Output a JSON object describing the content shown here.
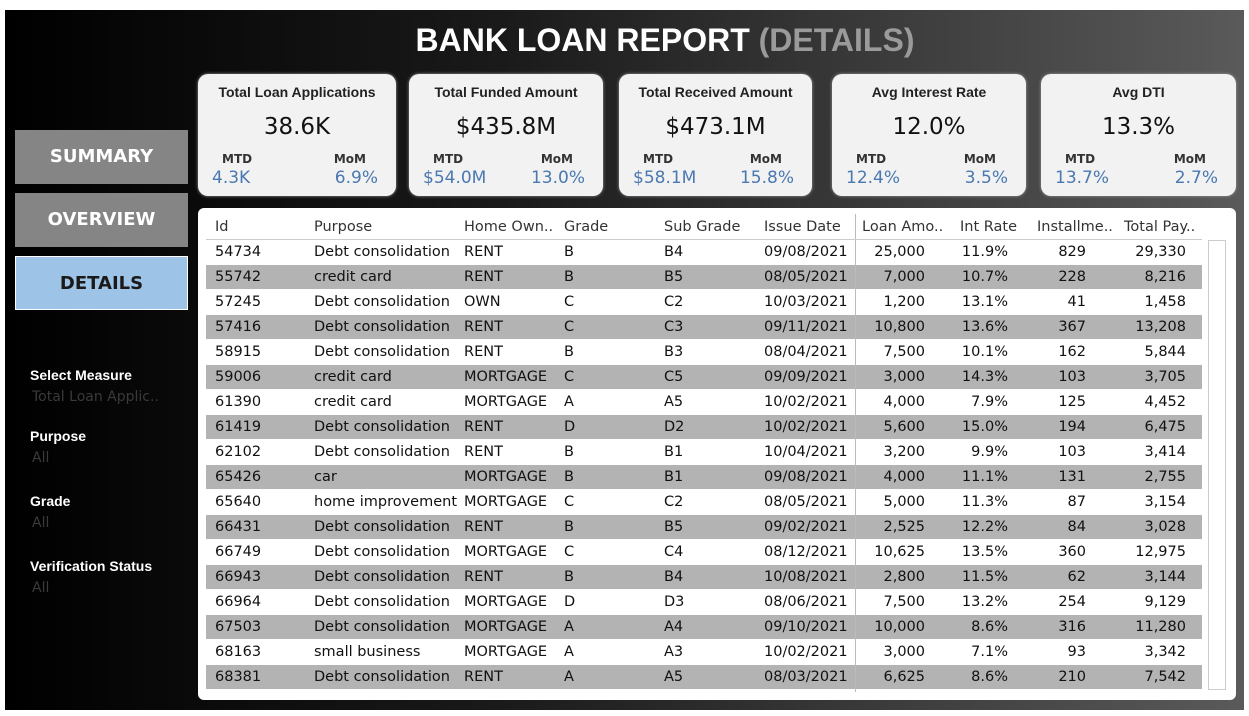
{
  "header": {
    "title": "BANK LOAN REPORT",
    "subtitle": "(DETAILS)"
  },
  "nav": [
    "SUMMARY",
    "OVERVIEW",
    "DETAILS"
  ],
  "filters": [
    {
      "label": "Select Measure",
      "value": "Total Loan Applic.."
    },
    {
      "label": "Purpose",
      "value": "All"
    },
    {
      "label": "Grade",
      "value": "All"
    },
    {
      "label": "Verification Status",
      "value": "All"
    }
  ],
  "kpis": [
    {
      "title": "Total Loan Applications",
      "value": "38.6K",
      "mtd_label": "MTD",
      "mtd": "4.3K",
      "mom_label": "MoM",
      "mom": "6.9%"
    },
    {
      "title": "Total Funded Amount",
      "value": "$435.8M",
      "mtd_label": "MTD",
      "mtd": "$54.0M",
      "mom_label": "MoM",
      "mom": "13.0%"
    },
    {
      "title": "Total Received Amount",
      "value": "$473.1M",
      "mtd_label": "MTD",
      "mtd": "$58.1M",
      "mom_label": "MoM",
      "mom": "15.8%"
    },
    {
      "title": "Avg Interest Rate",
      "value": "12.0%",
      "mtd_label": "MTD",
      "mtd": "12.4%",
      "mom_label": "MoM",
      "mom": "3.5%"
    },
    {
      "title": "Avg DTI",
      "value": "13.3%",
      "mtd_label": "MTD",
      "mtd": "13.7%",
      "mom_label": "MoM",
      "mom": "2.7%"
    }
  ],
  "table": {
    "columns": [
      "Id",
      "Purpose",
      "Home Own..",
      "Grade",
      "Sub Grade",
      "Issue Date",
      "Loan Amo..",
      "Int Rate",
      "Installme..",
      "Total Pay.."
    ],
    "rows": [
      [
        "54734",
        "Debt consolidation",
        "RENT",
        "B",
        "B4",
        "09/08/2021",
        "25,000",
        "11.9%",
        "829",
        "29,330"
      ],
      [
        "55742",
        "credit card",
        "RENT",
        "B",
        "B5",
        "08/05/2021",
        "7,000",
        "10.7%",
        "228",
        "8,216"
      ],
      [
        "57245",
        "Debt consolidation",
        "OWN",
        "C",
        "C2",
        "10/03/2021",
        "1,200",
        "13.1%",
        "41",
        "1,458"
      ],
      [
        "57416",
        "Debt consolidation",
        "RENT",
        "C",
        "C3",
        "09/11/2021",
        "10,800",
        "13.6%",
        "367",
        "13,208"
      ],
      [
        "58915",
        "Debt consolidation",
        "RENT",
        "B",
        "B3",
        "08/04/2021",
        "7,500",
        "10.1%",
        "162",
        "5,844"
      ],
      [
        "59006",
        "credit card",
        "MORTGAGE",
        "C",
        "C5",
        "09/09/2021",
        "3,000",
        "14.3%",
        "103",
        "3,705"
      ],
      [
        "61390",
        "credit card",
        "MORTGAGE",
        "A",
        "A5",
        "10/02/2021",
        "4,000",
        "7.9%",
        "125",
        "4,452"
      ],
      [
        "61419",
        "Debt consolidation",
        "RENT",
        "D",
        "D2",
        "10/02/2021",
        "5,600",
        "15.0%",
        "194",
        "6,475"
      ],
      [
        "62102",
        "Debt consolidation",
        "RENT",
        "B",
        "B1",
        "10/04/2021",
        "3,200",
        "9.9%",
        "103",
        "3,414"
      ],
      [
        "65426",
        "car",
        "MORTGAGE",
        "B",
        "B1",
        "09/08/2021",
        "4,000",
        "11.1%",
        "131",
        "2,755"
      ],
      [
        "65640",
        "home improvement",
        "MORTGAGE",
        "C",
        "C2",
        "08/05/2021",
        "5,000",
        "11.3%",
        "87",
        "3,154"
      ],
      [
        "66431",
        "Debt consolidation",
        "RENT",
        "B",
        "B5",
        "09/02/2021",
        "2,525",
        "12.2%",
        "84",
        "3,028"
      ],
      [
        "66749",
        "Debt consolidation",
        "MORTGAGE",
        "C",
        "C4",
        "08/12/2021",
        "10,625",
        "13.5%",
        "360",
        "12,975"
      ],
      [
        "66943",
        "Debt consolidation",
        "RENT",
        "B",
        "B4",
        "10/08/2021",
        "2,800",
        "11.5%",
        "62",
        "3,144"
      ],
      [
        "66964",
        "Debt consolidation",
        "MORTGAGE",
        "D",
        "D3",
        "08/06/2021",
        "7,500",
        "13.2%",
        "254",
        "9,129"
      ],
      [
        "67503",
        "Debt consolidation",
        "MORTGAGE",
        "A",
        "A4",
        "09/10/2021",
        "10,000",
        "8.6%",
        "316",
        "11,280"
      ],
      [
        "68163",
        "small business",
        "MORTGAGE",
        "A",
        "A3",
        "10/02/2021",
        "3,000",
        "7.1%",
        "93",
        "3,342"
      ],
      [
        "68381",
        "Debt consolidation",
        "RENT",
        "A",
        "A5",
        "08/03/2021",
        "6,625",
        "8.6%",
        "210",
        "7,542"
      ]
    ]
  }
}
